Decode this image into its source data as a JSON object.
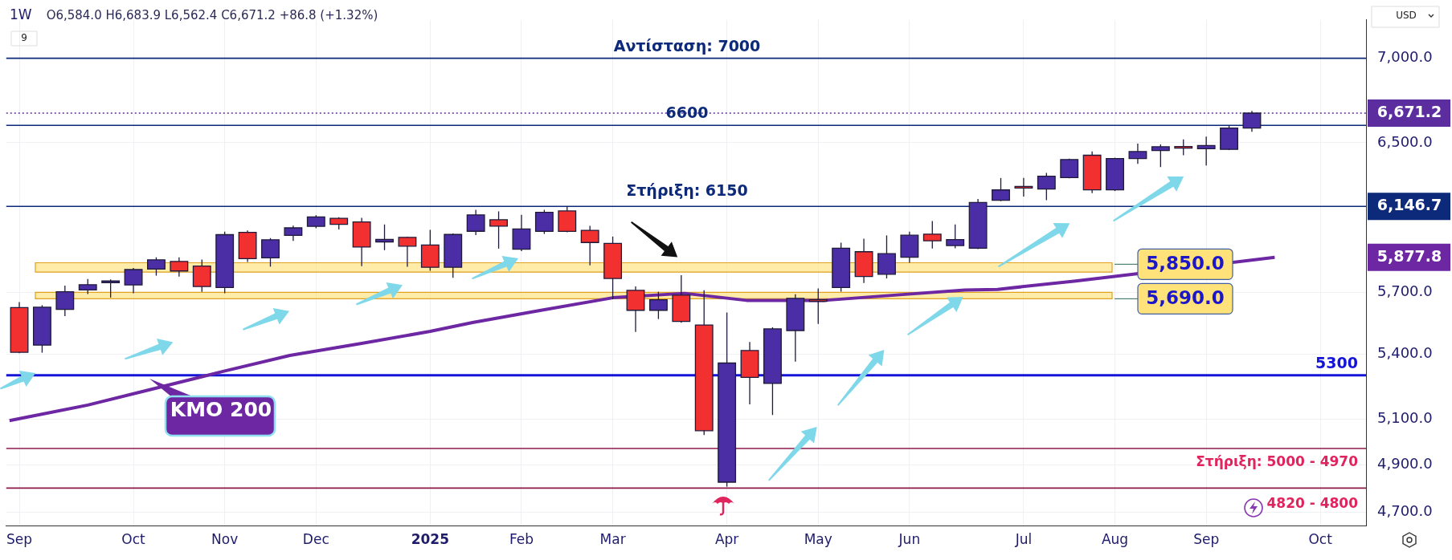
{
  "chart_data": {
    "type": "candlestick",
    "title": "1W",
    "subtitle": "O6,584.0 H6,683.9 L6,562.4 C6,671.2 +86.8 (+1.32%)",
    "x": [
      "2024-09-02",
      "2024-09-09",
      "2024-09-16",
      "2024-09-23",
      "2024-09-30",
      "2024-10-07",
      "2024-10-14",
      "2024-10-21",
      "2024-10-28",
      "2024-11-04",
      "2024-11-11",
      "2024-11-18",
      "2024-11-25",
      "2024-12-02",
      "2024-12-09",
      "2024-12-16",
      "2024-12-23",
      "2024-12-30",
      "2025-01-06",
      "2025-01-13",
      "2025-01-20",
      "2025-01-27",
      "2025-02-03",
      "2025-02-10",
      "2025-02-17",
      "2025-02-24",
      "2025-03-03",
      "2025-03-10",
      "2025-03-17",
      "2025-03-24",
      "2025-03-31",
      "2025-04-07",
      "2025-04-14",
      "2025-04-21",
      "2025-04-28",
      "2025-05-05",
      "2025-05-12",
      "2025-05-19",
      "2025-05-26",
      "2025-06-02",
      "2025-06-09",
      "2025-06-16",
      "2025-06-23",
      "2025-06-30",
      "2025-07-07",
      "2025-07-14",
      "2025-07-21",
      "2025-07-28",
      "2025-08-04",
      "2025-08-11",
      "2025-08-18",
      "2025-08-25",
      "2025-09-01",
      "2025-09-08",
      "2025-09-15"
    ],
    "ohlc": [
      [
        5624,
        5652,
        5403,
        5408
      ],
      [
        5442,
        5636,
        5406,
        5626
      ],
      [
        5615,
        5734,
        5582,
        5703
      ],
      [
        5712,
        5767,
        5691,
        5738
      ],
      [
        5757,
        5765,
        5674,
        5751
      ],
      [
        5737,
        5823,
        5696,
        5815
      ],
      [
        5818,
        5878,
        5784,
        5865
      ],
      [
        5857,
        5878,
        5779,
        5808
      ],
      [
        5833,
        5866,
        5703,
        5729
      ],
      [
        5724,
        6012,
        5696,
        5996
      ],
      [
        6008,
        6018,
        5854,
        5871
      ],
      [
        5875,
        5978,
        5830,
        5969
      ],
      [
        5992,
        6044,
        5963,
        6032
      ],
      [
        6040,
        6099,
        6030,
        6090
      ],
      [
        6083,
        6088,
        6024,
        6051
      ],
      [
        6063,
        6085,
        5832,
        5931
      ],
      [
        5958,
        6050,
        5915,
        5971
      ],
      [
        5982,
        5985,
        5829,
        5936
      ],
      [
        5942,
        6021,
        5809,
        5827
      ],
      [
        5827,
        6002,
        5773,
        5997
      ],
      [
        6014,
        6128,
        5994,
        6101
      ],
      [
        6075,
        6120,
        5923,
        6041
      ],
      [
        5920,
        6101,
        5910,
        6026
      ],
      [
        6013,
        6128,
        6000,
        6115
      ],
      [
        6122,
        6147,
        6009,
        6013
      ],
      [
        6019,
        6043,
        5837,
        5955
      ],
      [
        5950,
        5986,
        5666,
        5770
      ],
      [
        5710,
        5730,
        5505,
        5611
      ],
      [
        5611,
        5703,
        5568,
        5663
      ],
      [
        5686,
        5786,
        5550,
        5556
      ],
      [
        5539,
        5711,
        5029,
        5048
      ],
      [
        4825,
        5600,
        4806,
        5357
      ],
      [
        5416,
        5457,
        5166,
        5290
      ],
      [
        5262,
        5528,
        5118,
        5520
      ],
      [
        5512,
        5690,
        5364,
        5670
      ],
      [
        5663,
        5720,
        5544,
        5655
      ],
      [
        5724,
        5954,
        5704,
        5925
      ],
      [
        5907,
        5975,
        5747,
        5780
      ],
      [
        5791,
        5992,
        5770,
        5897
      ],
      [
        5878,
        6012,
        5850,
        5993
      ],
      [
        5999,
        6068,
        5924,
        5964
      ],
      [
        5939,
        6050,
        5925,
        5970
      ],
      [
        5925,
        6187,
        5920,
        6168
      ],
      [
        6180,
        6302,
        6175,
        6236
      ],
      [
        6255,
        6302,
        6200,
        6250
      ],
      [
        6241,
        6330,
        6180,
        6312
      ],
      [
        6304,
        6410,
        6300,
        6405
      ],
      [
        6429,
        6450,
        6218,
        6237
      ],
      [
        6237,
        6415,
        6230,
        6410
      ],
      [
        6410,
        6495,
        6380,
        6450
      ],
      [
        6456,
        6490,
        6362,
        6477
      ],
      [
        6478,
        6519,
        6429,
        6472
      ],
      [
        6466,
        6535,
        6371,
        6484
      ],
      [
        6462,
        6600,
        6458,
        6584
      ],
      [
        6584,
        6683.9,
        6562.4,
        6671.2
      ]
    ],
    "colors": [
      "#f23030",
      "#4b2ea5",
      "#4b2ea5",
      "#4b2ea5",
      "#4b2ea5",
      "#4b2ea5",
      "#4b2ea5",
      "#f23030",
      "#f23030",
      "#4b2ea5",
      "#f23030",
      "#4b2ea5",
      "#4b2ea5",
      "#4b2ea5",
      "#f23030",
      "#f23030",
      "#4b2ea5",
      "#f23030",
      "#f23030",
      "#4b2ea5",
      "#4b2ea5",
      "#f23030",
      "#4b2ea5",
      "#4b2ea5",
      "#f23030",
      "#f23030",
      "#f23030",
      "#f23030",
      "#4b2ea5",
      "#f23030",
      "#f23030",
      "#4b2ea5",
      "#f23030",
      "#4b2ea5",
      "#4b2ea5",
      "#f23030",
      "#4b2ea5",
      "#f23030",
      "#4b2ea5",
      "#4b2ea5",
      "#f23030",
      "#4b2ea5",
      "#4b2ea5",
      "#4b2ea5",
      "#f23030",
      "#4b2ea5",
      "#4b2ea5",
      "#f23030",
      "#4b2ea5",
      "#4b2ea5",
      "#4b2ea5",
      "#f23030",
      "#4b2ea5",
      "#4b2ea5",
      "#4b2ea5"
    ],
    "series": [
      {
        "name": "KMO 200",
        "type": "line",
        "color": "#6e27a3",
        "x": [
          "2024-08-30",
          "2024-09-23",
          "2024-10-12",
          "2024-11-03",
          "2024-11-24",
          "2024-12-16",
          "2025-01-06",
          "2025-01-19",
          "2025-02-09",
          "2025-03-03",
          "2025-03-25",
          "2025-04-13",
          "2025-05-07",
          "2025-05-30",
          "2025-06-19",
          "2025-06-29",
          "2025-07-23",
          "2025-08-14",
          "2025-09-22"
        ],
        "values": [
          5093,
          5163,
          5233,
          5316,
          5393,
          5450,
          5508,
          5551,
          5611,
          5673,
          5695,
          5660,
          5660,
          5688,
          5712,
          5715,
          5757,
          null,
          5877.8
        ]
      }
    ],
    "log": "y",
    "grid": true,
    "xlim": [
      "2024-08-29",
      "2025-10-20"
    ],
    "xticks": [
      {
        "value": "2024-09-02",
        "label": "Sep"
      },
      {
        "value": "2024-10-07",
        "label": "Oct"
      },
      {
        "value": "2024-11-04",
        "label": "Nov"
      },
      {
        "value": "2024-12-02",
        "label": "Dec"
      },
      {
        "value": "2025-01-06",
        "label": "2025"
      },
      {
        "value": "2025-02-03",
        "label": "Feb"
      },
      {
        "value": "2025-03-03",
        "label": "Mar"
      },
      {
        "value": "2025-04-07",
        "label": "Apr"
      },
      {
        "value": "2025-05-05",
        "label": "May"
      },
      {
        "value": "2025-06-02",
        "label": "Jun"
      },
      {
        "value": "2025-07-07",
        "label": "Jul"
      },
      {
        "value": "2025-08-04",
        "label": "Aug"
      },
      {
        "value": "2025-09-01",
        "label": "Sep"
      },
      {
        "value": "2025-10-06",
        "label": "Oct"
      }
    ],
    "ylim": [
      4645,
      7240
    ],
    "yticks": [
      {
        "value": 4700,
        "label": "4,700.0"
      },
      {
        "value": 4900,
        "label": "4,900.0"
      },
      {
        "value": 5100,
        "label": "5,100.0"
      },
      {
        "value": 5400,
        "label": "5,400.0"
      },
      {
        "value": 5700,
        "label": "5,700.0"
      },
      {
        "value": 6500,
        "label": "6,500.0"
      },
      {
        "value": 7000,
        "label": "7,000.0"
      }
    ],
    "ref_lines": [
      {
        "axis": "y",
        "value": 7000,
        "label": "Αντίσταση: 7000",
        "color": "#0d2a7a"
      },
      {
        "axis": "y",
        "value": 6671.2,
        "label": "6,671.2",
        "color": "#5b2d9e",
        "line_style": "dotted"
      },
      {
        "axis": "y",
        "value": 6600,
        "label": "6600",
        "color": "#0d2a7a"
      },
      {
        "axis": "y",
        "value": 6146.7,
        "label": "6,146.7",
        "color": "#0d2a7a"
      },
      {
        "axis": "y",
        "value": 5300,
        "label": "5300",
        "color": "#1414d8"
      },
      {
        "axis": "y",
        "value": 4970,
        "color": "#8b1a4a"
      },
      {
        "axis": "y",
        "value": 4800,
        "color": "#8b1a4a"
      }
    ],
    "bands": [
      {
        "axis": "y",
        "from": 5802,
        "to": 5850,
        "label": "5,850.0",
        "color": "#ffe27a"
      },
      {
        "axis": "y",
        "from": 5668,
        "to": 5700,
        "label": "5,690.0",
        "color": "#ffe27a"
      }
    ],
    "annotations": [
      "Στήριξη: 6150",
      "Στήριξη: 5000 - 4970",
      "4820 - 4800",
      "5,877.8",
      "USD",
      "9"
    ]
  }
}
